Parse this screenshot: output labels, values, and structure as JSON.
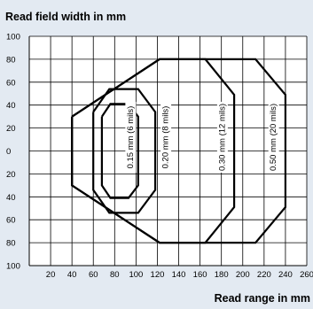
{
  "chart_data": {
    "type": "line",
    "title": "Read field width in mm",
    "xlabel": "Read range in mm",
    "ylabel": "",
    "xlim": [
      0,
      260
    ],
    "ylim": [
      -100,
      100
    ],
    "x_ticks": [
      20,
      40,
      60,
      80,
      100,
      120,
      140,
      160,
      180,
      200,
      220,
      240,
      260
    ],
    "y_ticks": [
      {
        "value": 100,
        "label": "100"
      },
      {
        "value": 80,
        "label": "80"
      },
      {
        "value": 60,
        "label": "60"
      },
      {
        "value": 40,
        "label": "40"
      },
      {
        "value": 20,
        "label": "20"
      },
      {
        "value": 0,
        "label": "0"
      },
      {
        "value": -20,
        "label": "20"
      },
      {
        "value": -40,
        "label": "40"
      },
      {
        "value": -60,
        "label": "60"
      },
      {
        "value": -80,
        "label": "80"
      },
      {
        "value": -100,
        "label": "100"
      }
    ],
    "grid": true,
    "series": [
      {
        "name": "0.15 mm (6 mils)",
        "points": [
          [
            68,
            30
          ],
          [
            76,
            41
          ],
          [
            93,
            41
          ],
          [
            102,
            30
          ],
          [
            102,
            -30
          ],
          [
            93,
            -41
          ],
          [
            76,
            -41
          ],
          [
            68,
            -30
          ],
          [
            68,
            30
          ]
        ],
        "label_x": 95
      },
      {
        "name": "0.20 mm (8 mils)",
        "points": [
          [
            60,
            34
          ],
          [
            75,
            54
          ],
          [
            102,
            54
          ],
          [
            118,
            34
          ],
          [
            118,
            -34
          ],
          [
            102,
            -54
          ],
          [
            75,
            -54
          ],
          [
            60,
            -34
          ],
          [
            60,
            34
          ]
        ],
        "label_x": 128
      },
      {
        "name": "0.30 mm (12 mils)",
        "points": [
          [
            40,
            30
          ],
          [
            122,
            80
          ],
          [
            165,
            80
          ],
          [
            192,
            49
          ],
          [
            192,
            -49
          ],
          [
            165,
            -80
          ],
          [
            122,
            -80
          ],
          [
            40,
            -30
          ],
          [
            40,
            30
          ]
        ],
        "label_x": 181
      },
      {
        "name": "0.50 mm (20 mils)",
        "points": [
          [
            40,
            30
          ],
          [
            122,
            80
          ],
          [
            212,
            80
          ],
          [
            240,
            49
          ],
          [
            240,
            -49
          ],
          [
            212,
            -80
          ],
          [
            122,
            -80
          ],
          [
            40,
            -30
          ],
          [
            40,
            30
          ]
        ],
        "label_x": 229
      }
    ]
  }
}
